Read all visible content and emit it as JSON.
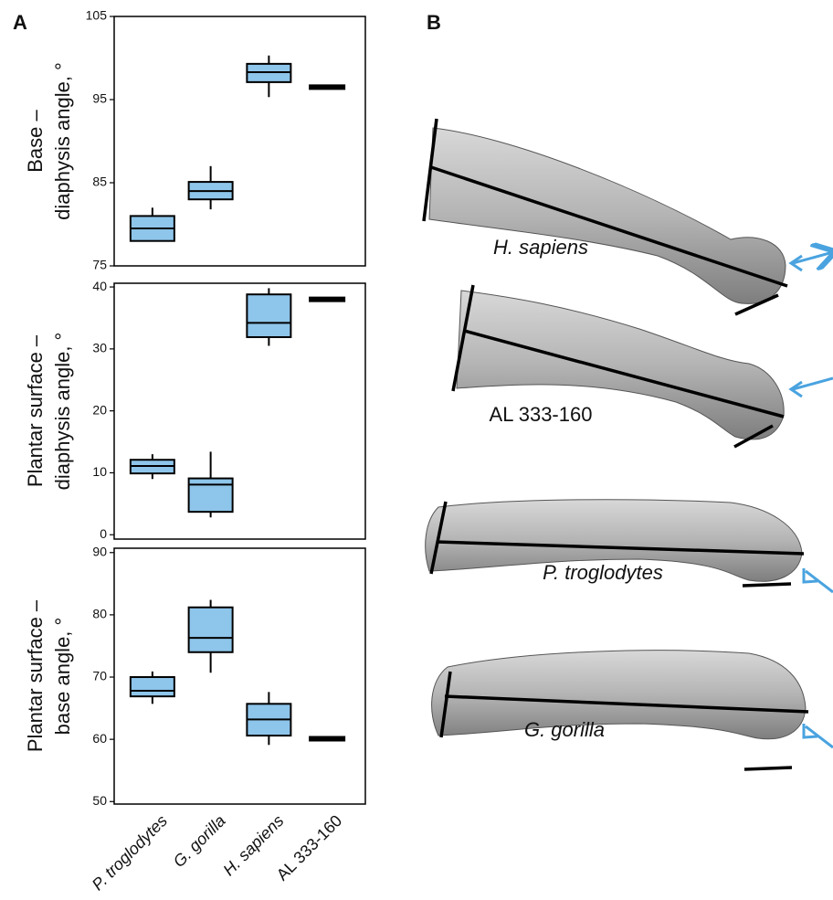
{
  "panel_labels": [
    "A",
    "B"
  ],
  "chart_data": [
    {
      "type": "box",
      "ylabel": [
        "Base –",
        "diaphysis  angle, °"
      ],
      "ylim": [
        75,
        105
      ],
      "yticks": [
        75,
        85,
        95,
        105
      ],
      "color": "#8ec5ea",
      "boxes": [
        {
          "whislo": 78,
          "q1": 78,
          "med": 79.5,
          "q3": 81,
          "whishi": 82
        },
        {
          "whislo": 81.8,
          "q1": 83,
          "med": 84,
          "q3": 85.1,
          "whishi": 87
        },
        {
          "whislo": 95.3,
          "q1": 97.1,
          "med": 98.3,
          "q3": 99.3,
          "whishi": 100.3
        },
        {
          "value": 96.5
        }
      ]
    },
    {
      "type": "box",
      "ylabel": [
        "Plantar surface –",
        "diaphysis  angle, °"
      ],
      "ylim": [
        -0.7,
        40.6
      ],
      "yticks": [
        0,
        10,
        20,
        30,
        40
      ],
      "color": "#8ec5ea",
      "boxes": [
        {
          "whislo": 9,
          "q1": 9.9,
          "med": 11.1,
          "q3": 12.1,
          "whishi": 13
        },
        {
          "whislo": 2.8,
          "q1": 3.7,
          "med": 8.1,
          "q3": 9.1,
          "whishi": 13.4
        },
        {
          "whislo": 30.5,
          "q1": 31.9,
          "med": 34.2,
          "q3": 38.8,
          "whishi": 39.8
        },
        {
          "value": 38
        }
      ]
    },
    {
      "type": "box",
      "ylabel": [
        "Plantar surface –",
        "base angle, °"
      ],
      "ylim": [
        49.6,
        90.7
      ],
      "yticks": [
        50,
        60,
        70,
        80,
        90
      ],
      "color": "#8ec5ea",
      "categories": [
        "P. troglodytes",
        "G. gorilla",
        "H. sapiens",
        "AL 333-160"
      ],
      "boxes": [
        {
          "whislo": 65.7,
          "q1": 66.9,
          "med": 67.8,
          "q3": 70,
          "whishi": 70.9
        },
        {
          "whislo": 70.7,
          "q1": 74,
          "med": 76.3,
          "q3": 81.2,
          "whishi": 82.4
        },
        {
          "whislo": 59.1,
          "q1": 60.6,
          "med": 63.2,
          "q3": 65.7,
          "whishi": 67.6
        },
        {
          "value": 60.1
        }
      ]
    }
  ],
  "specimens": [
    "H. sapiens",
    "AL 333-160",
    "P. troglodytes",
    "G. gorilla"
  ]
}
